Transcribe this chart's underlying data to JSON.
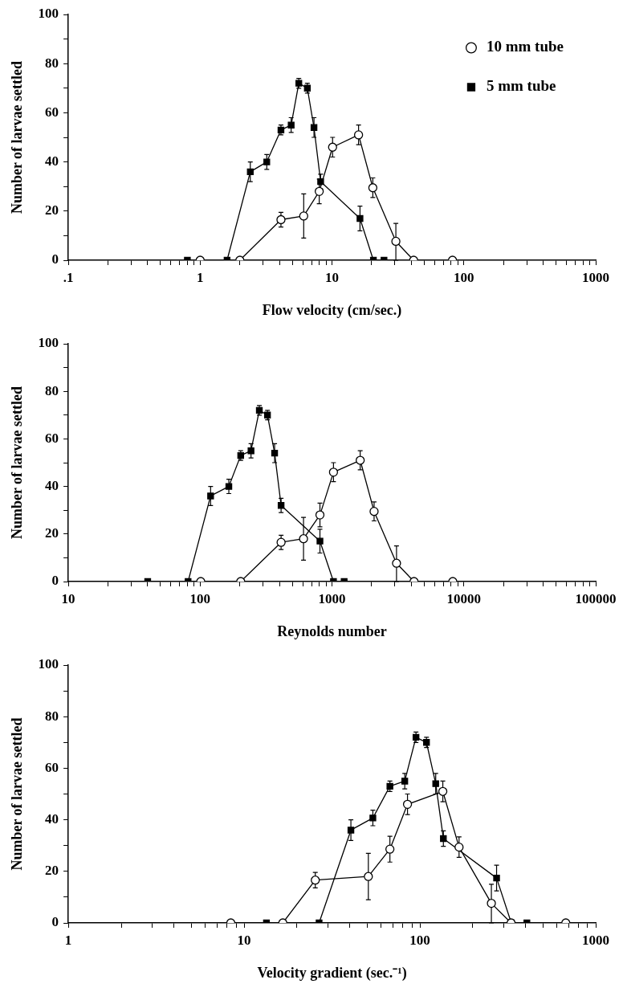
{
  "chart_data": [
    {
      "type": "line",
      "xlabel": "Flow velocity (cm/sec.)",
      "ylabel": "Number of larvae settled",
      "log": "x",
      "grid": false,
      "legend": "top right",
      "line_style": "solid",
      "xlim": [
        0.1,
        1000
      ],
      "ylim": [
        0,
        100
      ],
      "xticks": [
        {
          "value": 0.1,
          "label": ".1"
        },
        {
          "value": 0.2,
          "label": null
        },
        {
          "value": 0.3,
          "label": null
        },
        {
          "value": 0.4,
          "label": null
        },
        {
          "value": 0.5,
          "label": null
        },
        {
          "value": 0.6,
          "label": null
        },
        {
          "value": 0.7,
          "label": null
        },
        {
          "value": 0.8,
          "label": null
        },
        {
          "value": 0.9,
          "label": null
        },
        1,
        {
          "value": 2,
          "label": null
        },
        {
          "value": 3,
          "label": null
        },
        {
          "value": 4,
          "label": null
        },
        {
          "value": 5,
          "label": null
        },
        {
          "value": 6,
          "label": null
        },
        {
          "value": 7,
          "label": null
        },
        {
          "value": 8,
          "label": null
        },
        {
          "value": 9,
          "label": null
        },
        10,
        {
          "value": 20,
          "label": null
        },
        {
          "value": 30,
          "label": null
        },
        {
          "value": 40,
          "label": null
        },
        {
          "value": 50,
          "label": null
        },
        {
          "value": 60,
          "label": null
        },
        {
          "value": 70,
          "label": null
        },
        {
          "value": 80,
          "label": null
        },
        {
          "value": 90,
          "label": null
        },
        100,
        {
          "value": 200,
          "label": null
        },
        {
          "value": 300,
          "label": null
        },
        {
          "value": 400,
          "label": null
        },
        {
          "value": 500,
          "label": null
        },
        {
          "value": 600,
          "label": null
        },
        {
          "value": 700,
          "label": null
        },
        {
          "value": 800,
          "label": null
        },
        {
          "value": 900,
          "label": null
        },
        1000
      ],
      "yticks": [
        0,
        {
          "value": 10,
          "label": null
        },
        20,
        {
          "value": 30,
          "label": null
        },
        40,
        {
          "value": 50,
          "label": null
        },
        60,
        {
          "value": 70,
          "label": null
        },
        80,
        {
          "value": 90,
          "label": null
        },
        100
      ],
      "series": [
        {
          "name": "10 mm tube",
          "color": "#000000",
          "marker": "circle",
          "x": [
            1.0,
            2.0,
            4.1,
            6.1,
            8.0,
            10.1,
            15.9,
            20.4,
            30.5,
            41.6,
            82
          ],
          "values": [
            0,
            0,
            16.5,
            18,
            28,
            46,
            51,
            29.5,
            7.7,
            0,
            0
          ],
          "errors": [
            null,
            null,
            3,
            9,
            5,
            4,
            4,
            4,
            [
              0,
              15
            ],
            null,
            null
          ]
        },
        {
          "name": "5 mm tube",
          "color": "#000000",
          "marker": "square",
          "x": [
            0.8,
            1.6,
            2.4,
            3.2,
            4.1,
            4.9,
            5.6,
            6.5,
            7.3,
            8.2,
            16.3,
            20.6,
            24.8
          ],
          "values": [
            0,
            0,
            36,
            40,
            53,
            55,
            72,
            70,
            54,
            32,
            17,
            0,
            0
          ],
          "errors": [
            null,
            null,
            4,
            3,
            2,
            3,
            2,
            2,
            4,
            3,
            5,
            null,
            null
          ]
        }
      ]
    },
    {
      "type": "line",
      "xlabel": "Reynolds number",
      "ylabel": "Number of larvae settled",
      "log": "x",
      "grid": false,
      "line_style": "solid",
      "xlim": [
        10,
        100000
      ],
      "ylim": [
        0,
        100
      ],
      "xticks": [
        10,
        {
          "value": 20,
          "label": null
        },
        {
          "value": 30,
          "label": null
        },
        {
          "value": 40,
          "label": null
        },
        {
          "value": 50,
          "label": null
        },
        {
          "value": 60,
          "label": null
        },
        {
          "value": 70,
          "label": null
        },
        {
          "value": 80,
          "label": null
        },
        {
          "value": 90,
          "label": null
        },
        100,
        {
          "value": 200,
          "label": null
        },
        {
          "value": 300,
          "label": null
        },
        {
          "value": 400,
          "label": null
        },
        {
          "value": 500,
          "label": null
        },
        {
          "value": 600,
          "label": null
        },
        {
          "value": 700,
          "label": null
        },
        {
          "value": 800,
          "label": null
        },
        {
          "value": 900,
          "label": null
        },
        1000,
        {
          "value": 2000,
          "label": null
        },
        {
          "value": 3000,
          "label": null
        },
        {
          "value": 4000,
          "label": null
        },
        {
          "value": 5000,
          "label": null
        },
        {
          "value": 6000,
          "label": null
        },
        {
          "value": 7000,
          "label": null
        },
        {
          "value": 8000,
          "label": null
        },
        {
          "value": 9000,
          "label": null
        },
        10000,
        {
          "value": 20000,
          "label": null
        },
        {
          "value": 30000,
          "label": null
        },
        {
          "value": 40000,
          "label": null
        },
        {
          "value": 50000,
          "label": null
        },
        {
          "value": 60000,
          "label": null
        },
        {
          "value": 70000,
          "label": null
        },
        {
          "value": 80000,
          "label": null
        },
        {
          "value": 90000,
          "label": null
        },
        100000
      ],
      "yticks": [
        0,
        {
          "value": 10,
          "label": null
        },
        20,
        {
          "value": 30,
          "label": null
        },
        40,
        {
          "value": 50,
          "label": null
        },
        60,
        {
          "value": 70,
          "label": null
        },
        80,
        {
          "value": 90,
          "label": null
        },
        100
      ],
      "series": [
        {
          "color": "#000000",
          "marker": "circle",
          "x": [
            101,
            203,
            411,
            608,
            810,
            1026,
            1636,
            2085,
            3085,
            4188,
            8240
          ],
          "values": [
            0,
            0,
            16.5,
            18,
            28,
            46,
            51,
            29.5,
            7.7,
            0,
            0
          ],
          "errors": [
            null,
            null,
            3,
            9,
            5,
            4,
            4,
            4,
            [
              0,
              15
            ],
            null,
            null
          ]
        },
        {
          "color": "#000000",
          "marker": "square",
          "x": [
            40,
            81,
            120,
            165,
            203,
            243,
            281,
            324,
            367,
            411,
            810,
            1026,
            1236
          ],
          "values": [
            0,
            0,
            36,
            40,
            53,
            55,
            72,
            70,
            54,
            32,
            17,
            0,
            0
          ],
          "errors": [
            null,
            null,
            4,
            3,
            2,
            3,
            2,
            2,
            4,
            3,
            5,
            null,
            null
          ]
        }
      ]
    },
    {
      "type": "line",
      "xlabel": "Velocity gradient (sec.⁻¹)",
      "ylabel": "Number of larvae settled",
      "log": "x",
      "grid": false,
      "line_style": "solid",
      "xlim": [
        1,
        1000
      ],
      "ylim": [
        0,
        100
      ],
      "xticks": [
        1,
        {
          "value": 2,
          "label": null
        },
        {
          "value": 3,
          "label": null
        },
        {
          "value": 4,
          "label": null
        },
        {
          "value": 5,
          "label": null
        },
        {
          "value": 6,
          "label": null
        },
        {
          "value": 7,
          "label": null
        },
        {
          "value": 8,
          "label": null
        },
        {
          "value": 9,
          "label": null
        },
        10,
        {
          "value": 20,
          "label": null
        },
        {
          "value": 30,
          "label": null
        },
        {
          "value": 40,
          "label": null
        },
        {
          "value": 50,
          "label": null
        },
        {
          "value": 60,
          "label": null
        },
        {
          "value": 70,
          "label": null
        },
        {
          "value": 80,
          "label": null
        },
        {
          "value": 90,
          "label": null
        },
        100,
        {
          "value": 200,
          "label": null
        },
        {
          "value": 300,
          "label": null
        },
        {
          "value": 400,
          "label": null
        },
        {
          "value": 500,
          "label": null
        },
        {
          "value": 600,
          "label": null
        },
        {
          "value": 700,
          "label": null
        },
        {
          "value": 800,
          "label": null
        },
        {
          "value": 900,
          "label": null
        },
        1000
      ],
      "yticks": [
        0,
        {
          "value": 10,
          "label": null
        },
        20,
        {
          "value": 30,
          "label": null
        },
        40,
        {
          "value": 50,
          "label": null
        },
        60,
        {
          "value": 70,
          "label": null
        },
        80,
        {
          "value": 90,
          "label": null
        },
        100
      ],
      "series": [
        {
          "color": "#000000",
          "marker": "circle",
          "x": [
            8.4,
            16.6,
            25.4,
            50.9,
            67.5,
            85,
            135,
            167,
            255,
            330,
            676
          ],
          "values": [
            0,
            0,
            16.6,
            18,
            28.6,
            46,
            51,
            29.4,
            7.6,
            0,
            0
          ],
          "errors": [
            null,
            null,
            3,
            9,
            5,
            4,
            4,
            4,
            [
              0,
              15
            ],
            null,
            null
          ]
        },
        {
          "color": "#000000",
          "marker": "square",
          "x": [
            13.4,
            26.7,
            40.5,
            54,
            67.5,
            82,
            95,
            109,
            123,
            136,
            273,
            331,
            406
          ],
          "values": [
            0,
            0,
            36,
            40.7,
            53,
            55,
            72,
            70,
            54,
            32.7,
            17.4,
            0,
            0
          ],
          "errors": [
            null,
            null,
            4,
            3,
            2,
            3,
            2,
            2,
            4,
            3,
            5,
            null,
            null
          ]
        }
      ]
    }
  ]
}
